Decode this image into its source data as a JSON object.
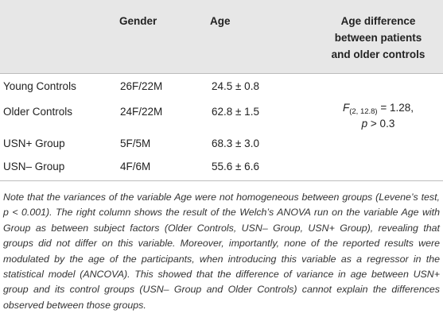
{
  "table": {
    "headers": {
      "group": "",
      "gender": "Gender",
      "age": "Age",
      "age_difference": "Age difference\nbetween patients\nand older controls"
    },
    "rows": [
      {
        "group": "Young Controls",
        "gender": "26F/22M",
        "age": "24.5 ± 0.8"
      },
      {
        "group": "Older Controls",
        "gender": "24F/22M",
        "age": "62.8 ± 1.5"
      },
      {
        "group": "USN+ Group",
        "gender": "5F/5M",
        "age": "68.3 ± 3.0"
      },
      {
        "group": "USN– Group",
        "gender": "4F/6M",
        "age": "55.6 ± 6.6"
      }
    ],
    "statistic": {
      "symbol": "F",
      "df": "(2, 12.8)",
      "value": " = 1.28,",
      "p_symbol": "p",
      "p_value": " > 0.3"
    },
    "colors": {
      "header_background": "#e7e7e7",
      "rule": "#bdbdbd",
      "text": "#222222"
    }
  },
  "note": "Note that the variances of the variable Age were not homogeneous between groups (Levene’s test, p < 0.001). The right column shows the result of the Welch’s ANOVA run on the variable Age with Group as between subject factors (Older Controls, USN– Group, USN+ Group), revealing that groups did not differ on this variable. Moreover, importantly, none of the reported results were modulated by the age of the participants, when introducing this variable as a regressor in the statistical model (ANCOVA). This showed that the difference of variance in age between USN+ group and its control groups (USN– Group and Older Controls) cannot explain the differences observed between those groups."
}
